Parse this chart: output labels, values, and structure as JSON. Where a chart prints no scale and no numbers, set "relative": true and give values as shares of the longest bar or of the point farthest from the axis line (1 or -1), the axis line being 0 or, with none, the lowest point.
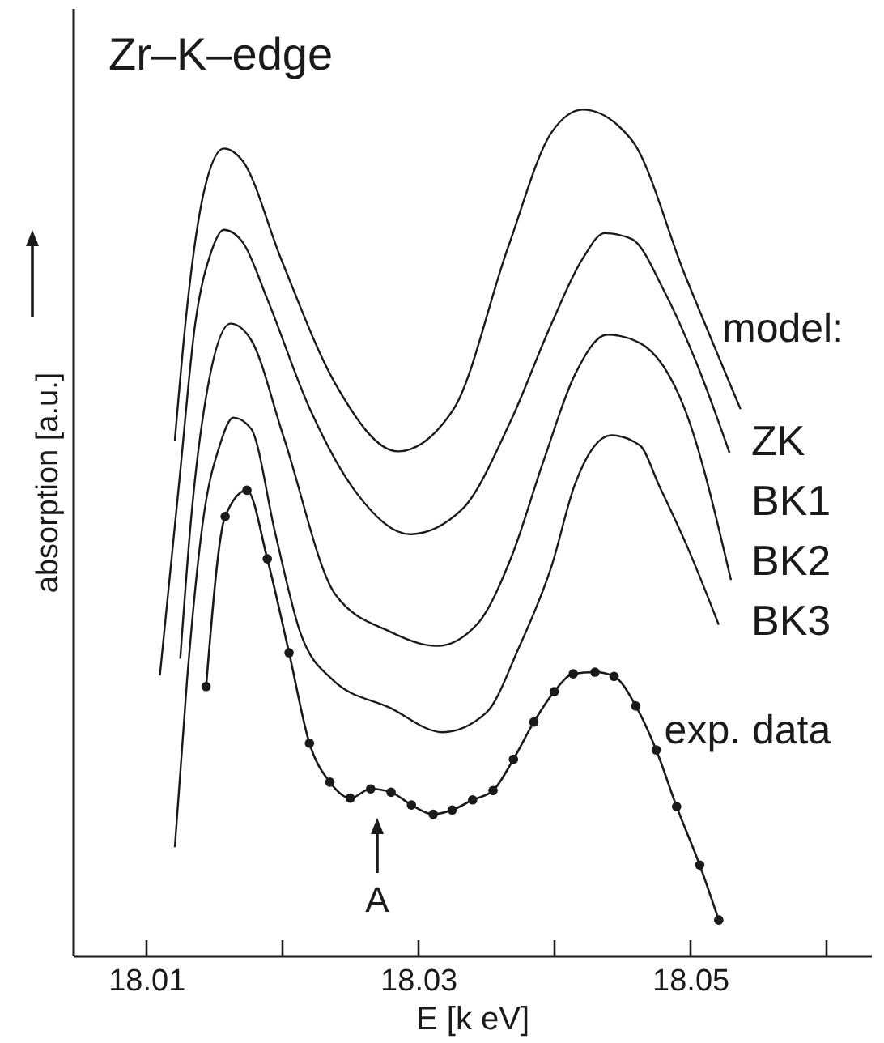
{
  "chart_data": {
    "type": "line",
    "title": "Zr–K–edge",
    "xlabel": "E [k eV]",
    "ylabel": "absorption [a.u.]",
    "legend_title": "model:",
    "legend": "right",
    "relative": true,
    "grid": false,
    "xlim": [
      18.0046,
      18.0633
    ],
    "xticks": [
      18.01,
      {
        "value": 18.02,
        "label": null
      },
      18.03,
      {
        "value": 18.04,
        "label": null
      },
      18.05,
      {
        "value": 18.06,
        "label": null
      }
    ],
    "annotations": [
      "A"
    ],
    "series": [
      {
        "name": "ZK",
        "color": "#1a1a1a",
        "x": [
          18.0121,
          18.013,
          18.0142,
          18.0157,
          18.0171,
          18.0199,
          18.0239,
          18.0285,
          18.0326,
          18.0366,
          18.0398,
          18.0421,
          18.0457,
          18.0496,
          18.0537
        ],
        "values": [
          0.609,
          0.766,
          0.9,
          0.954,
          0.939,
          0.824,
          0.676,
          0.596,
          0.646,
          0.837,
          0.973,
          1.0,
          0.964,
          0.805,
          0.646
        ]
      },
      {
        "name": "BK1",
        "color": "#1a1a1a",
        "x": [
          18.011,
          18.0124,
          18.0136,
          18.0148,
          18.0157,
          18.0171,
          18.0189,
          18.0219,
          18.0255,
          18.0294,
          18.0332,
          18.0368,
          18.0398,
          18.0421,
          18.0437,
          18.0457,
          18.0481,
          18.0505,
          18.0529
        ],
        "values": [
          0.331,
          0.556,
          0.747,
          0.833,
          0.858,
          0.843,
          0.776,
          0.651,
          0.546,
          0.498,
          0.527,
          0.632,
          0.747,
          0.824,
          0.854,
          0.847,
          0.785,
          0.699,
          0.594
        ]
      },
      {
        "name": "BK2",
        "color": "#1a1a1a",
        "x": [
          18.0125,
          18.0133,
          18.0145,
          18.0162,
          18.0177,
          18.0201,
          18.0239,
          18.0279,
          18.0314,
          18.0344,
          18.0368,
          18.0392,
          18.0415,
          18.0439,
          18.0463,
          18.0496,
          18.053
        ],
        "values": [
          0.351,
          0.517,
          0.67,
          0.747,
          0.728,
          0.613,
          0.427,
          0.383,
          0.366,
          0.393,
          0.469,
          0.584,
          0.686,
          0.734,
          0.724,
          0.646,
          0.444
        ]
      },
      {
        "name": "BK3",
        "color": "#1a1a1a",
        "x": [
          18.0121,
          18.013,
          18.0142,
          18.0154,
          18.0164,
          18.0177,
          18.0195,
          18.0213,
          18.0237,
          18.0279,
          18.0318,
          18.035,
          18.0374,
          18.0398,
          18.0415,
          18.0442,
          18.0463,
          18.0477,
          18.0499,
          18.0521
        ],
        "values": [
          0.128,
          0.326,
          0.517,
          0.603,
          0.636,
          0.623,
          0.498,
          0.383,
          0.326,
          0.293,
          0.264,
          0.287,
          0.364,
          0.46,
          0.556,
          0.615,
          0.603,
          0.556,
          0.479,
          0.391
        ]
      },
      {
        "name": "exp. data",
        "color": "#1a1a1a",
        "marker": "circle",
        "x": [
          18.0144,
          18.0158,
          18.0174,
          18.0189,
          18.0205,
          18.022,
          18.0235,
          18.025,
          18.0265,
          18.028,
          18.0295,
          18.0311,
          18.0325,
          18.034,
          18.0355,
          18.037,
          18.0385,
          18.04,
          18.0414,
          18.043,
          18.0444,
          18.046,
          18.0475,
          18.049,
          18.0507,
          18.0521
        ],
        "values": [
          0.318,
          0.519,
          0.55,
          0.469,
          0.358,
          0.251,
          0.205,
          0.186,
          0.197,
          0.193,
          0.178,
          0.167,
          0.172,
          0.184,
          0.195,
          0.232,
          0.276,
          0.312,
          0.333,
          0.335,
          0.33,
          0.295,
          0.243,
          0.176,
          0.107,
          0.042
        ]
      }
    ]
  }
}
